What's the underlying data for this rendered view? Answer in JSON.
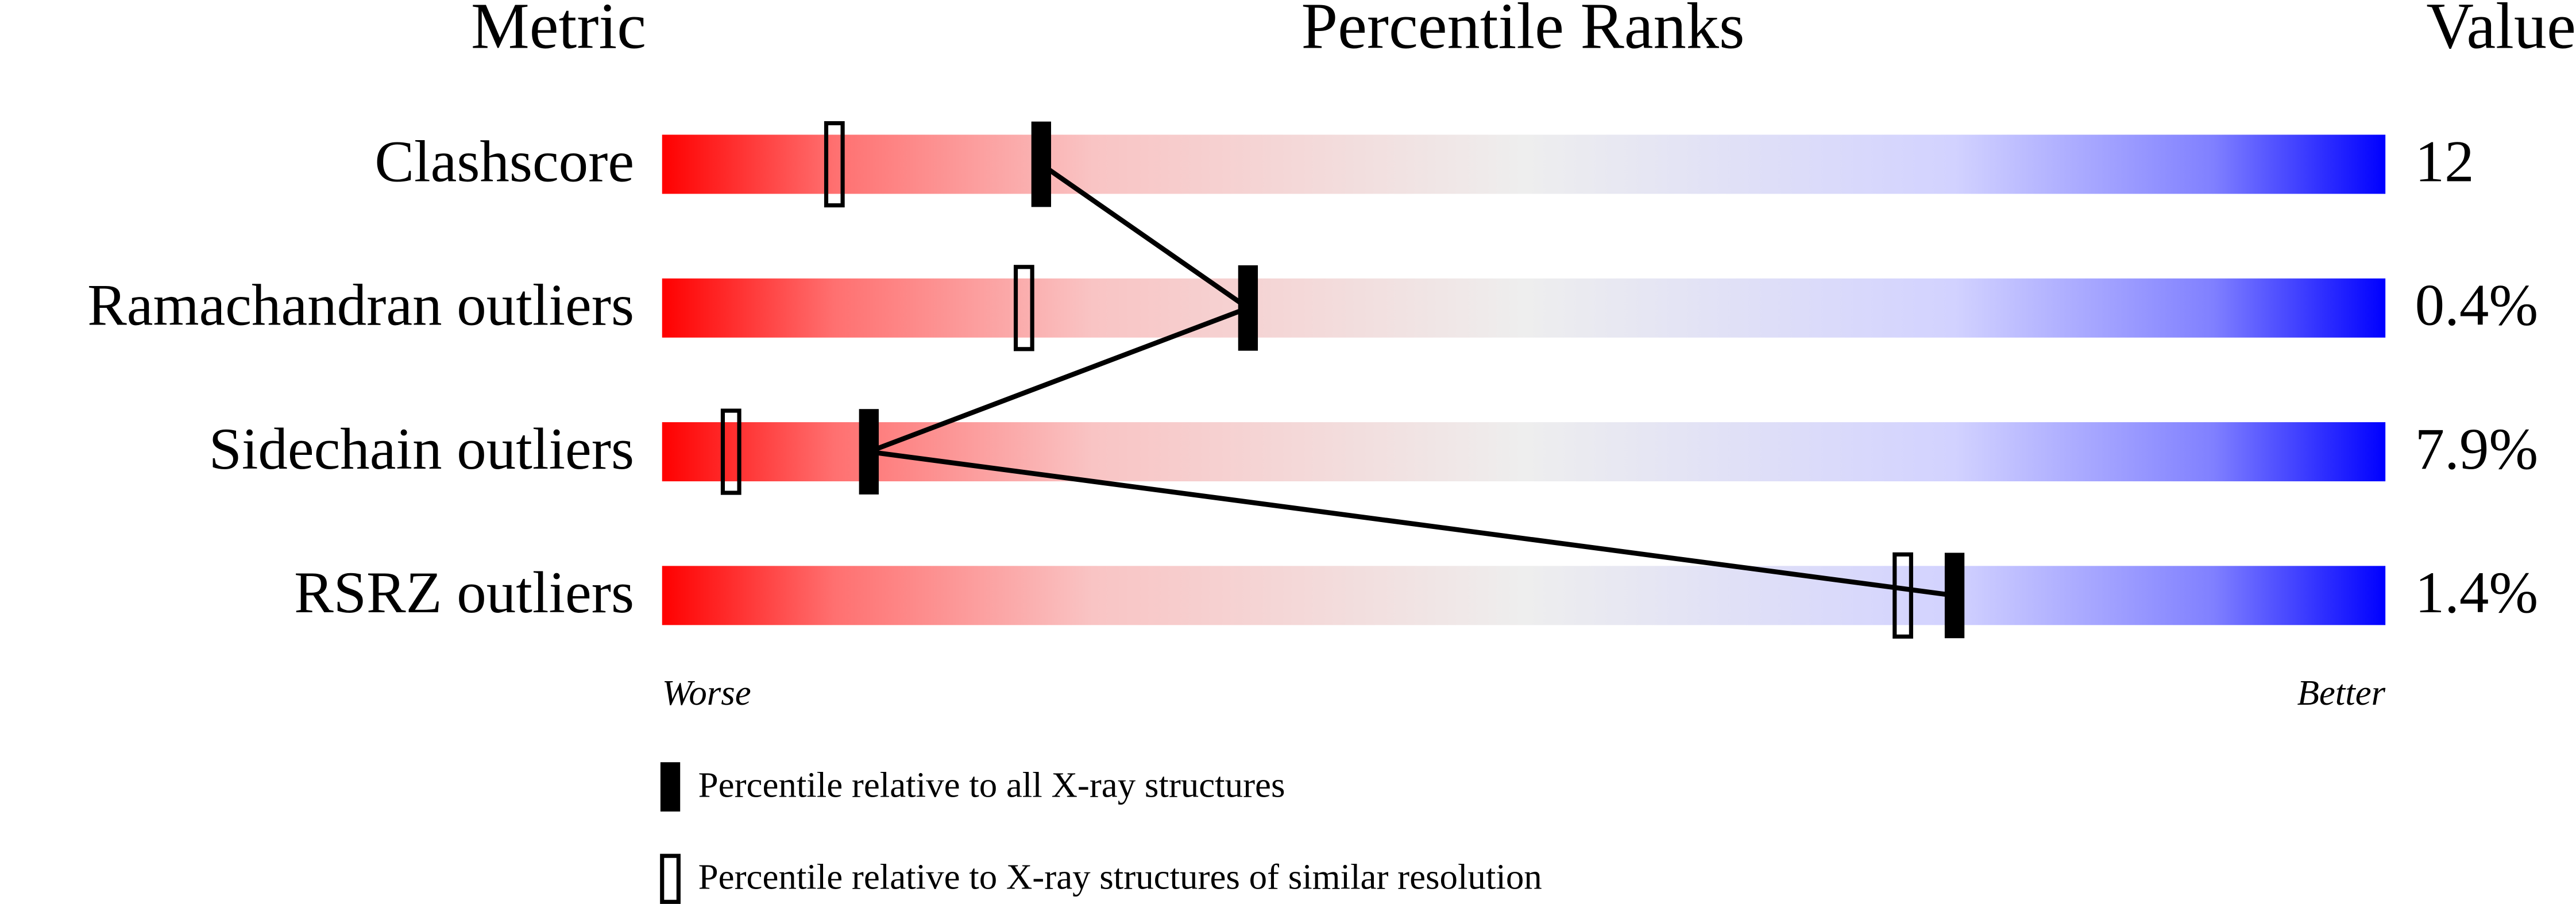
{
  "chart_data": {
    "type": "percentile-slider",
    "headers": {
      "metric": "Metric",
      "ranks": "Percentile Ranks",
      "value": "Value"
    },
    "categories": [
      "Clashscore",
      "Ramachandran outliers",
      "Sidechain outliers",
      "RSRZ outliers"
    ],
    "metric_values": [
      "12",
      "0.4%",
      "7.9%",
      "1.4%"
    ],
    "xlim": [
      0,
      100
    ],
    "x_axis_labels": {
      "low": "Worse",
      "high": "Better"
    },
    "series": [
      {
        "name": "Percentile relative to all X-ray structures",
        "style": "filled",
        "color": "#000000",
        "values": [
          22,
          34,
          12,
          75
        ]
      },
      {
        "name": "Percentile relative to X-ray structures of similar resolution",
        "style": "open",
        "color": "#000000",
        "values": [
          10,
          21,
          4,
          72
        ]
      }
    ]
  }
}
